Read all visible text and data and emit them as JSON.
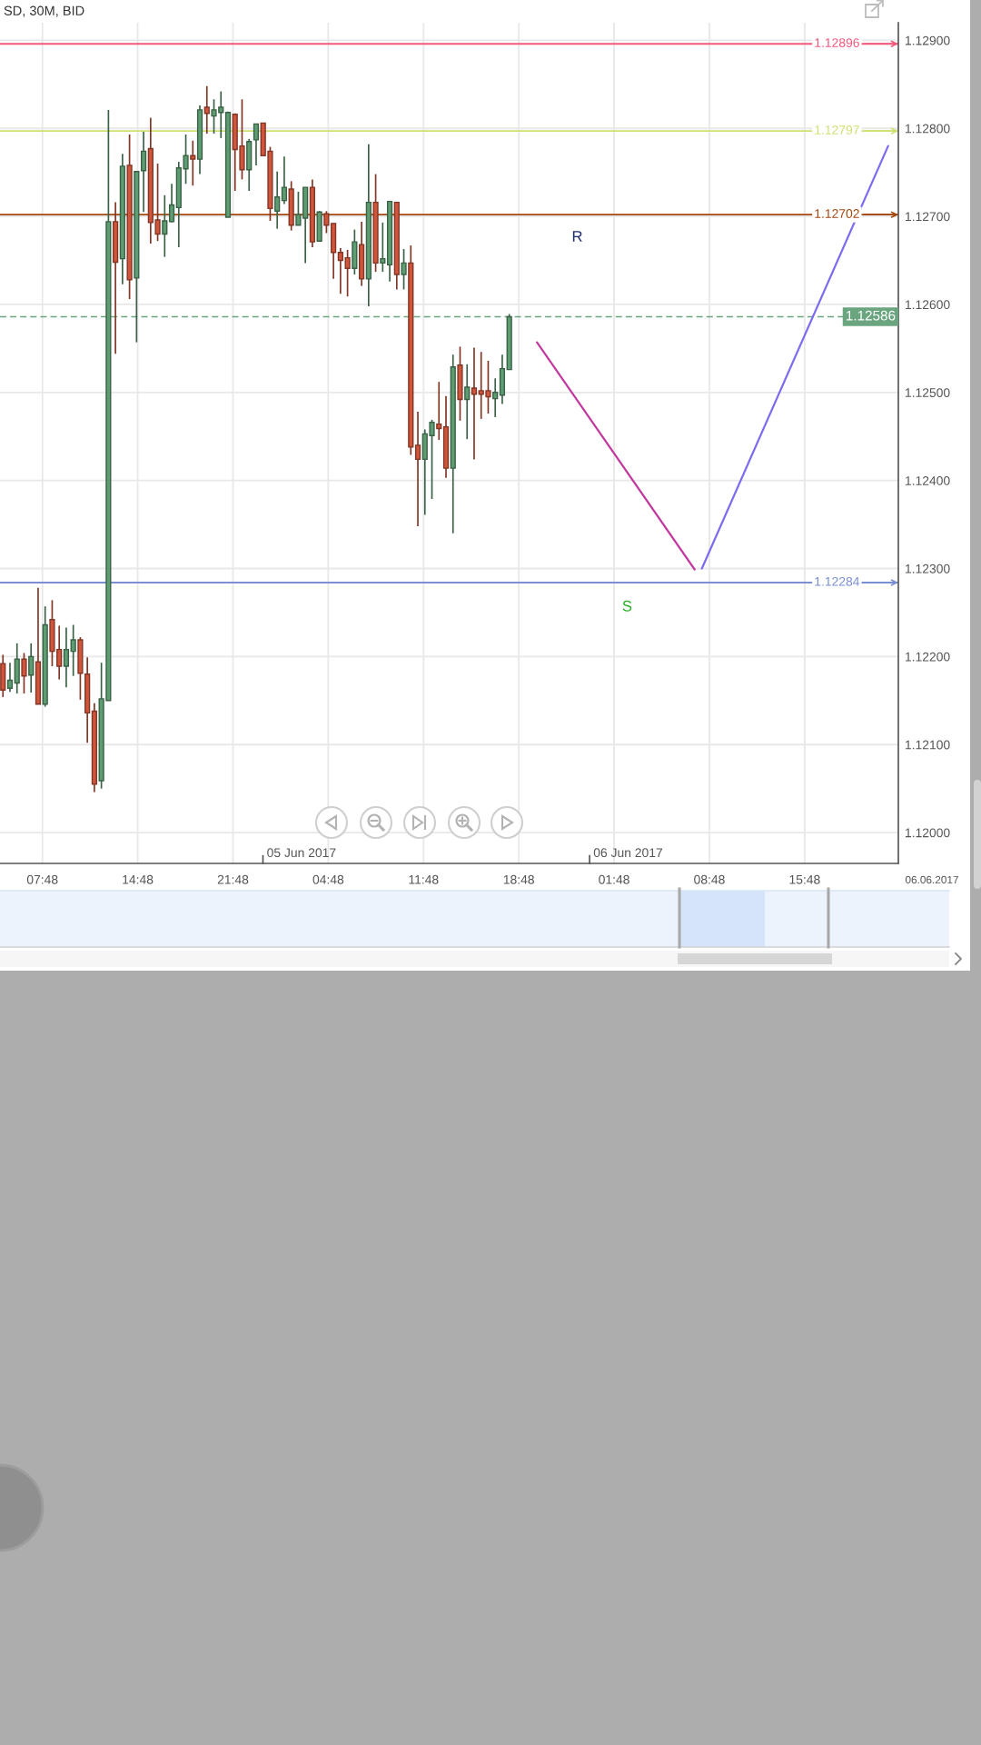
{
  "chart_data": {
    "type": "candlestick",
    "title": "SD, 30M, BID",
    "x": [
      "2017-06-04T04:54",
      "2017-06-04T05:25",
      "2017-06-04T05:56",
      "2017-06-04T06:27",
      "2017-06-04T06:58",
      "2017-06-04T07:29",
      "2017-06-04T08:00",
      "2017-06-04T08:31",
      "2017-06-04T09:02",
      "2017-06-04T09:33",
      "2017-06-04T10:04",
      "2017-06-04T10:35",
      "2017-06-04T11:06",
      "2017-06-04T11:37",
      "2017-06-04T12:08",
      "2017-06-04T12:39",
      "2017-06-04T13:10",
      "2017-06-04T13:41",
      "2017-06-04T14:12",
      "2017-06-04T14:43",
      "2017-06-04T15:14",
      "2017-06-04T15:45",
      "2017-06-04T16:16",
      "2017-06-04T16:47",
      "2017-06-04T17:18",
      "2017-06-04T17:49",
      "2017-06-04T18:20",
      "2017-06-04T18:51",
      "2017-06-04T19:22",
      "2017-06-04T19:53",
      "2017-06-04T20:24",
      "2017-06-04T20:55",
      "2017-06-04T21:26",
      "2017-06-04T21:57",
      "2017-06-04T22:28",
      "2017-06-04T22:59",
      "2017-06-04T23:30",
      "2017-06-05T00:01",
      "2017-06-05T00:32",
      "2017-06-05T01:03",
      "2017-06-05T01:34",
      "2017-06-05T02:05",
      "2017-06-05T02:36",
      "2017-06-05T03:07",
      "2017-06-05T03:38",
      "2017-06-05T04:09",
      "2017-06-05T04:40",
      "2017-06-05T05:11",
      "2017-06-05T05:42",
      "2017-06-05T06:13",
      "2017-06-05T06:44",
      "2017-06-05T07:15",
      "2017-06-05T07:46",
      "2017-06-05T08:17",
      "2017-06-05T08:48",
      "2017-06-05T09:19",
      "2017-06-05T09:50",
      "2017-06-05T10:21",
      "2017-06-05T10:52",
      "2017-06-05T11:23",
      "2017-06-05T11:54",
      "2017-06-05T12:25",
      "2017-06-05T12:56",
      "2017-06-05T13:27",
      "2017-06-05T13:58",
      "2017-06-05T14:29",
      "2017-06-05T15:00",
      "2017-06-05T15:31",
      "2017-06-05T16:02",
      "2017-06-05T16:33",
      "2017-06-05T17:04",
      "2017-06-05T17:35",
      "2017-06-05T18:06"
    ],
    "ohlc": [
      [
        1.12192,
        1.12202,
        1.12154,
        1.12162
      ],
      [
        1.12164,
        1.12193,
        1.1216,
        1.12173
      ],
      [
        1.1217,
        1.12215,
        1.12158,
        1.12197
      ],
      [
        1.12197,
        1.12204,
        1.12158,
        1.12178
      ],
      [
        1.12179,
        1.12215,
        1.12159,
        1.122
      ],
      [
        1.12194,
        1.12278,
        1.12146,
        1.12146
      ],
      [
        1.12146,
        1.12257,
        1.12143,
        1.12236
      ],
      [
        1.12242,
        1.12264,
        1.12189,
        1.12206
      ],
      [
        1.12208,
        1.12235,
        1.12174,
        1.12189
      ],
      [
        1.12189,
        1.12233,
        1.12165,
        1.12208
      ],
      [
        1.12206,
        1.12236,
        1.12178,
        1.12219
      ],
      [
        1.12219,
        1.12222,
        1.12151,
        1.12181
      ],
      [
        1.1218,
        1.12199,
        1.12102,
        1.12136
      ],
      [
        1.12138,
        1.12147,
        1.12046,
        1.12055
      ],
      [
        1.12059,
        1.12193,
        1.1205,
        1.12152
      ],
      [
        1.1215,
        1.12821,
        1.1215,
        1.12694
      ],
      [
        1.12694,
        1.12716,
        1.12544,
        1.12648
      ],
      [
        1.12652,
        1.12771,
        1.12623,
        1.12757
      ],
      [
        1.12758,
        1.12793,
        1.12606,
        1.12628
      ],
      [
        1.1263,
        1.12751,
        1.12557,
        1.12751
      ],
      [
        1.12752,
        1.12796,
        1.12705,
        1.12774
      ],
      [
        1.12777,
        1.12812,
        1.12669,
        1.12693
      ],
      [
        1.12696,
        1.1276,
        1.12672,
        1.1268
      ],
      [
        1.1268,
        1.12724,
        1.12654,
        1.12695
      ],
      [
        1.12694,
        1.12737,
        1.12693,
        1.12713
      ],
      [
        1.1271,
        1.12762,
        1.12665,
        1.12755
      ],
      [
        1.12754,
        1.12793,
        1.12737,
        1.12769
      ],
      [
        1.12769,
        1.12786,
        1.12735,
        1.12765
      ],
      [
        1.12765,
        1.12826,
        1.12748,
        1.12821
      ],
      [
        1.12824,
        1.12848,
        1.12794,
        1.12817
      ],
      [
        1.12814,
        1.12833,
        1.12794,
        1.12821
      ],
      [
        1.12818,
        1.12842,
        1.12789,
        1.12824
      ],
      [
        1.12699,
        1.12819,
        1.12699,
        1.12818
      ],
      [
        1.12816,
        1.12817,
        1.12729,
        1.12776
      ],
      [
        1.1278,
        1.12833,
        1.12742,
        1.12753
      ],
      [
        1.12753,
        1.12788,
        1.12729,
        1.12785
      ],
      [
        1.12787,
        1.12805,
        1.12758,
        1.12805
      ],
      [
        1.12806,
        1.12806,
        1.12769,
        1.12769
      ],
      [
        1.12774,
        1.12779,
        1.12695,
        1.12709
      ],
      [
        1.12706,
        1.12751,
        1.12686,
        1.12722
      ],
      [
        1.12718,
        1.12768,
        1.12714,
        1.12733
      ],
      [
        1.12731,
        1.1274,
        1.12684,
        1.1269
      ],
      [
        1.1269,
        1.12728,
        1.1269,
        1.12702
      ],
      [
        1.12698,
        1.12733,
        1.12647,
        1.12733
      ],
      [
        1.12733,
        1.12742,
        1.12665,
        1.12671
      ],
      [
        1.12672,
        1.12706,
        1.12672,
        1.12705
      ],
      [
        1.12703,
        1.12706,
        1.12681,
        1.1269
      ],
      [
        1.12692,
        1.12692,
        1.12629,
        1.12659
      ],
      [
        1.12659,
        1.12664,
        1.12612,
        1.1265
      ],
      [
        1.12653,
        1.12662,
        1.12609,
        1.12641
      ],
      [
        1.12641,
        1.12685,
        1.12634,
        1.12671
      ],
      [
        1.12668,
        1.12694,
        1.12621,
        1.12629
      ],
      [
        1.12629,
        1.12782,
        1.12598,
        1.12716
      ],
      [
        1.12716,
        1.12748,
        1.12637,
        1.12647
      ],
      [
        1.12647,
        1.12693,
        1.12637,
        1.12652
      ],
      [
        1.12645,
        1.12717,
        1.12626,
        1.12717
      ],
      [
        1.12716,
        1.12716,
        1.12617,
        1.12634
      ],
      [
        1.12634,
        1.12663,
        1.12617,
        1.12647
      ],
      [
        1.12647,
        1.12667,
        1.12429,
        1.12438
      ],
      [
        1.1244,
        1.12478,
        1.12348,
        1.12424
      ],
      [
        1.12424,
        1.12458,
        1.12361,
        1.12453
      ],
      [
        1.12451,
        1.12469,
        1.12379,
        1.12466
      ],
      [
        1.12464,
        1.12512,
        1.12446,
        1.12459
      ],
      [
        1.12461,
        1.12496,
        1.12403,
        1.12414
      ],
      [
        1.12414,
        1.12543,
        1.1234,
        1.12529
      ],
      [
        1.12531,
        1.12552,
        1.12468,
        1.12492
      ],
      [
        1.12492,
        1.12532,
        1.12447,
        1.12506
      ],
      [
        1.12505,
        1.12551,
        1.12424,
        1.12498
      ],
      [
        1.12502,
        1.12546,
        1.1247,
        1.12498
      ],
      [
        1.12502,
        1.12536,
        1.12476,
        1.12495
      ],
      [
        1.12493,
        1.12516,
        1.12472,
        1.125
      ],
      [
        1.12497,
        1.12543,
        1.12487,
        1.12527
      ],
      [
        1.12526,
        1.12589,
        1.12526,
        1.12586
      ]
    ],
    "colors": [
      "#d0553b",
      "#5e9c71",
      "#5e9c71",
      "#d0553b",
      "#5e9c71",
      "#d0553b",
      "#5e9c71",
      "#d0553b",
      "#d0553b",
      "#5e9c71",
      "#5e9c71",
      "#d0553b",
      "#d0553b",
      "#d0553b",
      "#5e9c71",
      "#5e9c71",
      "#d0553b",
      "#5e9c71",
      "#d0553b",
      "#5e9c71",
      "#5e9c71",
      "#d0553b",
      "#d0553b",
      "#5e9c71",
      "#5e9c71",
      "#5e9c71",
      "#5e9c71",
      "#d0553b",
      "#5e9c71",
      "#d0553b",
      "#5e9c71",
      "#5e9c71",
      "#5e9c71",
      "#d0553b",
      "#d0553b",
      "#5e9c71",
      "#5e9c71",
      "#d0553b",
      "#d0553b",
      "#5e9c71",
      "#5e9c71",
      "#d0553b",
      "#5e9c71",
      "#5e9c71",
      "#d0553b",
      "#5e9c71",
      "#d0553b",
      "#d0553b",
      "#d0553b",
      "#d0553b",
      "#5e9c71",
      "#d0553b",
      "#5e9c71",
      "#d0553b",
      "#5e9c71",
      "#5e9c71",
      "#d0553b",
      "#5e9c71",
      "#d0553b",
      "#d0553b",
      "#5e9c71",
      "#5e9c71",
      "#d0553b",
      "#d0553b",
      "#5e9c71",
      "#d0553b",
      "#5e9c71",
      "#d0553b",
      "#d0553b",
      "#d0553b",
      "#5e9c71",
      "#5e9c71",
      "#5e9c71"
    ],
    "series": [
      {
        "type": "line",
        "x": [
          "2017-06-05T20:08",
          "2017-06-06T07:43"
        ],
        "values": [
          1.12557,
          1.12299
        ],
        "color": "#c2389e"
      },
      {
        "type": "line",
        "x": [
          "2017-06-06T08:15",
          "2017-06-06T21:56"
        ],
        "values": [
          1.123,
          1.1278
        ],
        "color": "#7c6cf2"
      }
    ],
    "ref_lines": [
      {
        "axis": "y",
        "value": 1.12896,
        "label": "1.12896",
        "color": "#f2587c"
      },
      {
        "axis": "y",
        "value": 1.12797,
        "label": "1.12797",
        "color": "#cfdf72"
      },
      {
        "axis": "y",
        "value": 1.12702,
        "label": "1.12702",
        "color": "#a3470f"
      },
      {
        "axis": "y",
        "value": 1.12284,
        "label": "1.12284",
        "color": "#7b8fd2"
      },
      {
        "axis": "y",
        "value": 1.12586,
        "label": "1.12586",
        "color": "#6aa57f",
        "line_style": "dashed"
      }
    ],
    "annotations": [
      "R",
      "S",
      "05 Jun 2017",
      "06 Jun 2017",
      "06.06.2017"
    ],
    "xlim": [
      "2017-06-04T04:41",
      "2017-06-06T22:41"
    ],
    "ylim": [
      1.11965,
      1.1292
    ],
    "xticks": [
      {
        "value": "2017-06-04T07:48",
        "label": "07:48"
      },
      {
        "value": "2017-06-04T14:48",
        "label": "14:48"
      },
      {
        "value": "2017-06-04T21:48",
        "label": "21:48"
      },
      {
        "value": "2017-06-05T04:48",
        "label": "04:48"
      },
      {
        "value": "2017-06-05T11:48",
        "label": "11:48"
      },
      {
        "value": "2017-06-05T18:48",
        "label": "18:48"
      },
      {
        "value": "2017-06-06T01:48",
        "label": "01:48"
      },
      {
        "value": "2017-06-06T08:48",
        "label": "08:48"
      },
      {
        "value": "2017-06-06T15:48",
        "label": "15:48"
      }
    ],
    "yticks": [
      {
        "value": 1.12,
        "label": "1.12000"
      },
      {
        "value": 1.121,
        "label": "1.12100"
      },
      {
        "value": 1.122,
        "label": "1.12200"
      },
      {
        "value": 1.123,
        "label": "1.12300"
      },
      {
        "value": 1.124,
        "label": "1.12400"
      },
      {
        "value": 1.125,
        "label": "1.12500"
      },
      {
        "value": 1.126,
        "label": "1.12600"
      },
      {
        "value": 1.127,
        "label": "1.12700"
      },
      {
        "value": 1.128,
        "label": "1.12800"
      },
      {
        "value": 1.129,
        "label": "1.12900"
      }
    ],
    "grid": true
  }
}
